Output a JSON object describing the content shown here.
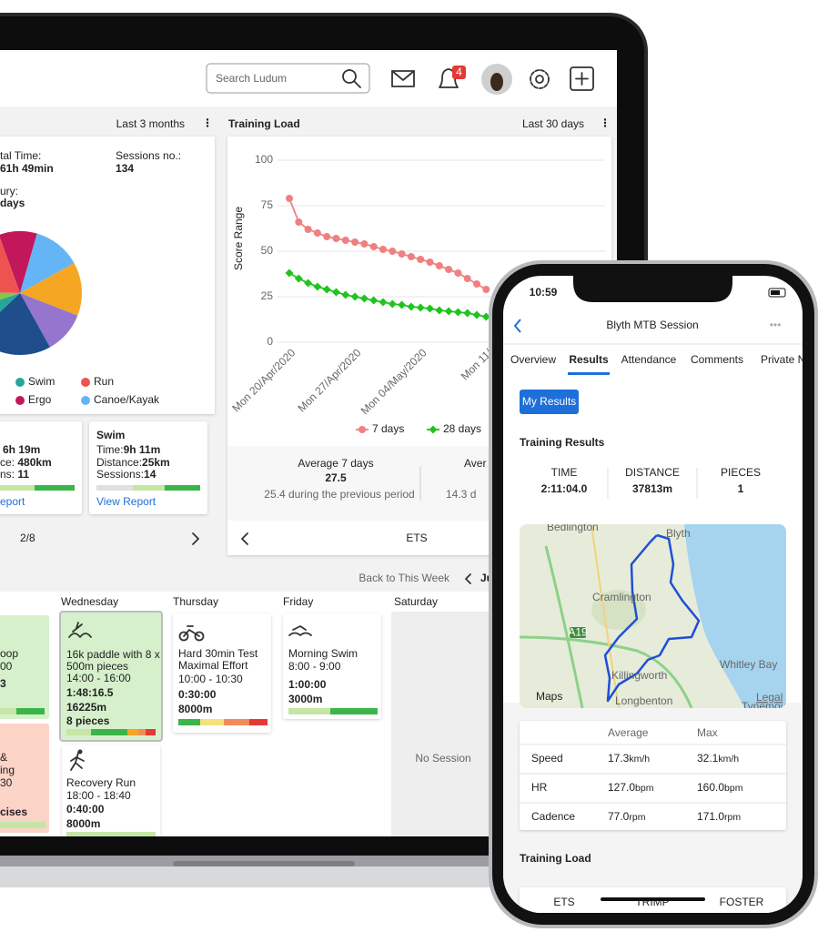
{
  "header": {
    "search": "Search Ludum",
    "notification_badge": "4"
  },
  "summary": {
    "period": "Last 3 months",
    "total_time_label": "tal Time:",
    "total_time": "61h 49min",
    "sessions_label": "Sessions no.:",
    "sessions": "134",
    "injury_label": "ury:",
    "injury": "days",
    "legend": [
      {
        "name": "Swim",
        "color": "#26a69a"
      },
      {
        "name": "Run",
        "color": "#ef5350"
      },
      {
        "name": "Ergo",
        "color": "#c2185b"
      },
      {
        "name": "Canoe/Kayak",
        "color": "#64b5f6"
      }
    ],
    "pager": "2/8"
  },
  "chart_data": [
    {
      "type": "pie",
      "values": [
        10,
        12.5,
        14,
        11,
        21,
        7,
        5.5,
        19
      ],
      "colors": [
        "#c2185b",
        "#64b5f6",
        "#f5a623",
        "#9575cd",
        "#1e4e8c",
        "#26a69a",
        "#8bc34a",
        "#ef5350"
      ]
    },
    {
      "type": "line",
      "title": "Training Load",
      "period": "Last 30 days",
      "y_label": "Score Range",
      "categories": [
        "Mon 20/Apr/2020",
        null,
        null,
        null,
        null,
        null,
        null,
        "Mon 27/Apr/2020",
        null,
        null,
        null,
        null,
        null,
        null,
        "Mon 04/May/2020",
        null,
        null,
        null,
        null,
        null,
        null,
        "Mon 11/"
      ],
      "ylim": [
        0,
        100
      ],
      "yticks": [
        0,
        25,
        50,
        75,
        100
      ],
      "grid": true,
      "series": [
        {
          "name": "7 days",
          "color": "#f08080",
          "marker": "circle",
          "values": [
            79,
            66,
            62,
            60,
            58,
            57,
            56,
            55,
            54,
            52.5,
            51,
            50,
            48.5,
            47,
            45.5,
            44,
            42,
            40,
            38,
            35,
            32,
            29
          ]
        },
        {
          "name": "28 days",
          "color": "#1fc41f",
          "marker": "diamond",
          "values": [
            38,
            35,
            32.5,
            30.5,
            29,
            27.5,
            26,
            25,
            24,
            23,
            22,
            21,
            20.5,
            19.5,
            19,
            18.5,
            17.5,
            17,
            16.5,
            16,
            15,
            14
          ]
        }
      ],
      "stats": [
        {
          "label": "Average 7 days",
          "value": "27.5",
          "note": "25.4 during the previous period"
        },
        {
          "label": "Aver",
          "note": "14.3 d"
        }
      ],
      "footer": "ETS"
    }
  ],
  "session_cards": [
    {
      "time": "6h 19m",
      "distance_label": "ce:",
      "distance": "480km",
      "sessions_label": "ns:",
      "sessions": "11",
      "link": "eport"
    },
    {
      "title": "Swim",
      "time_label": "Time:",
      "time": "9h 11m",
      "distance_label": "Distance:",
      "distance": "25km",
      "sessions_label": "Sessions:",
      "sessions": "14",
      "link": "View Report"
    }
  ],
  "calendar": {
    "back": "Back to This Week",
    "month": "Ju",
    "days": [
      "Wednesday",
      "Thursday",
      "Friday",
      "Saturday"
    ],
    "partial_green": [
      "oop",
      "00",
      "3"
    ],
    "partial_red": [
      "&",
      "ing",
      "30",
      "cises"
    ],
    "wednesday_1": {
      "title": [
        "16k paddle with 8 x",
        "500m pieces"
      ],
      "time": "14:00 - 16:00",
      "duration": "1:48:16.5",
      "distance": "16225m",
      "pieces": "8 pieces"
    },
    "wednesday_2": {
      "title": [
        "Recovery Run"
      ],
      "time": "18:00 - 18:40",
      "duration": "0:40:00",
      "distance": "8000m"
    },
    "thursday": {
      "title": [
        "Hard 30min Test",
        "Maximal Effort"
      ],
      "time": "10:00 - 10:30",
      "duration": "0:30:00",
      "distance": "8000m"
    },
    "friday": {
      "title": [
        "Morning Swim"
      ],
      "time": "8:00 - 9:00",
      "duration": "1:00:00",
      "distance": "3000m"
    },
    "saturday": "No Session"
  },
  "phone": {
    "clock": "10:59",
    "title": "Blyth MTB Session",
    "tabs": [
      "Overview",
      "Results",
      "Attendance",
      "Comments",
      "Private N"
    ],
    "button": "My Results",
    "results_heading": "Training Results",
    "results": [
      {
        "label": "TIME",
        "value": "2:11:04.0"
      },
      {
        "label": "DISTANCE",
        "value": "37813m"
      },
      {
        "label": "PIECES",
        "value": "1"
      }
    ],
    "map_labels": [
      "Bedlington",
      "Blyth",
      "Cramlington",
      "A19",
      "Killingworth",
      "Whitley Bay",
      "Longbenton",
      "Maps",
      "Legal",
      "Tynemouth"
    ],
    "table": {
      "headers": [
        "Average",
        "Max"
      ],
      "rows": [
        {
          "label": "Speed",
          "average": "17.3",
          "average_unit": "km/h",
          "max": "32.1",
          "max_unit": "km/h"
        },
        {
          "label": "HR",
          "average": "127.0",
          "average_unit": "bpm",
          "max": "160.0",
          "max_unit": "bpm"
        },
        {
          "label": "Cadence",
          "average": "77.0",
          "average_unit": "rpm",
          "max": "171.0",
          "max_unit": "rpm"
        }
      ]
    },
    "load_heading": "Training Load",
    "load_columns": [
      "ETS",
      "TRIMP",
      "FOSTER"
    ]
  }
}
